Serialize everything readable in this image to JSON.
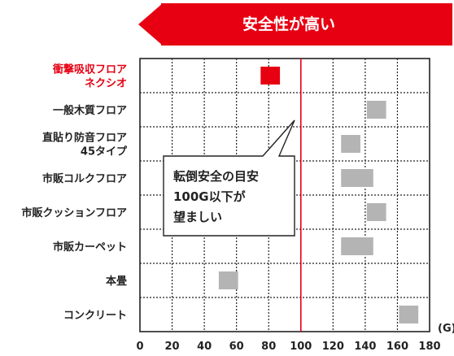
{
  "banner": {
    "text": "安全性が高い"
  },
  "callout": {
    "lines": [
      "転倒安全の目安",
      "100G以下が",
      "望ましい"
    ]
  },
  "chart_data": {
    "type": "range-bar",
    "unit": "(G)",
    "xlim": [
      0,
      180
    ],
    "x_ticks": [
      "0",
      "20",
      "40",
      "60",
      "80",
      "100",
      "120",
      "140",
      "160",
      "180"
    ],
    "reference_line": 100,
    "grid": true,
    "categories": [
      {
        "label": [
          "衝撃吸収フロア",
          "ネクシオ"
        ],
        "range": [
          75,
          87
        ],
        "color": "#e60012",
        "label_color": "#e60012"
      },
      {
        "label": [
          "一般木質フロア"
        ],
        "range": [
          141,
          153
        ],
        "color": "#b4b4b4",
        "label_color": "#222222"
      },
      {
        "label": [
          "直貼り防音フロア",
          "45タイプ"
        ],
        "range": [
          125,
          137
        ],
        "color": "#b4b4b4",
        "label_color": "#222222"
      },
      {
        "label": [
          "市販コルクフロア"
        ],
        "range": [
          125,
          145
        ],
        "color": "#b4b4b4",
        "label_color": "#222222"
      },
      {
        "label": [
          "市販クッションフロア"
        ],
        "range": [
          141,
          153
        ],
        "color": "#b4b4b4",
        "label_color": "#222222"
      },
      {
        "label": [
          "市販カーペット"
        ],
        "range": [
          125,
          145
        ],
        "color": "#b4b4b4",
        "label_color": "#222222"
      },
      {
        "label": [
          "本畳"
        ],
        "range": [
          49,
          61
        ],
        "color": "#b4b4b4",
        "label_color": "#222222"
      },
      {
        "label": [
          "コンクリート"
        ],
        "range": [
          161,
          173
        ],
        "color": "#b4b4b4",
        "label_color": "#222222"
      }
    ]
  },
  "colors": {
    "accent": "#e60012",
    "bar": "#b4b4b4",
    "grid": "#222222"
  }
}
